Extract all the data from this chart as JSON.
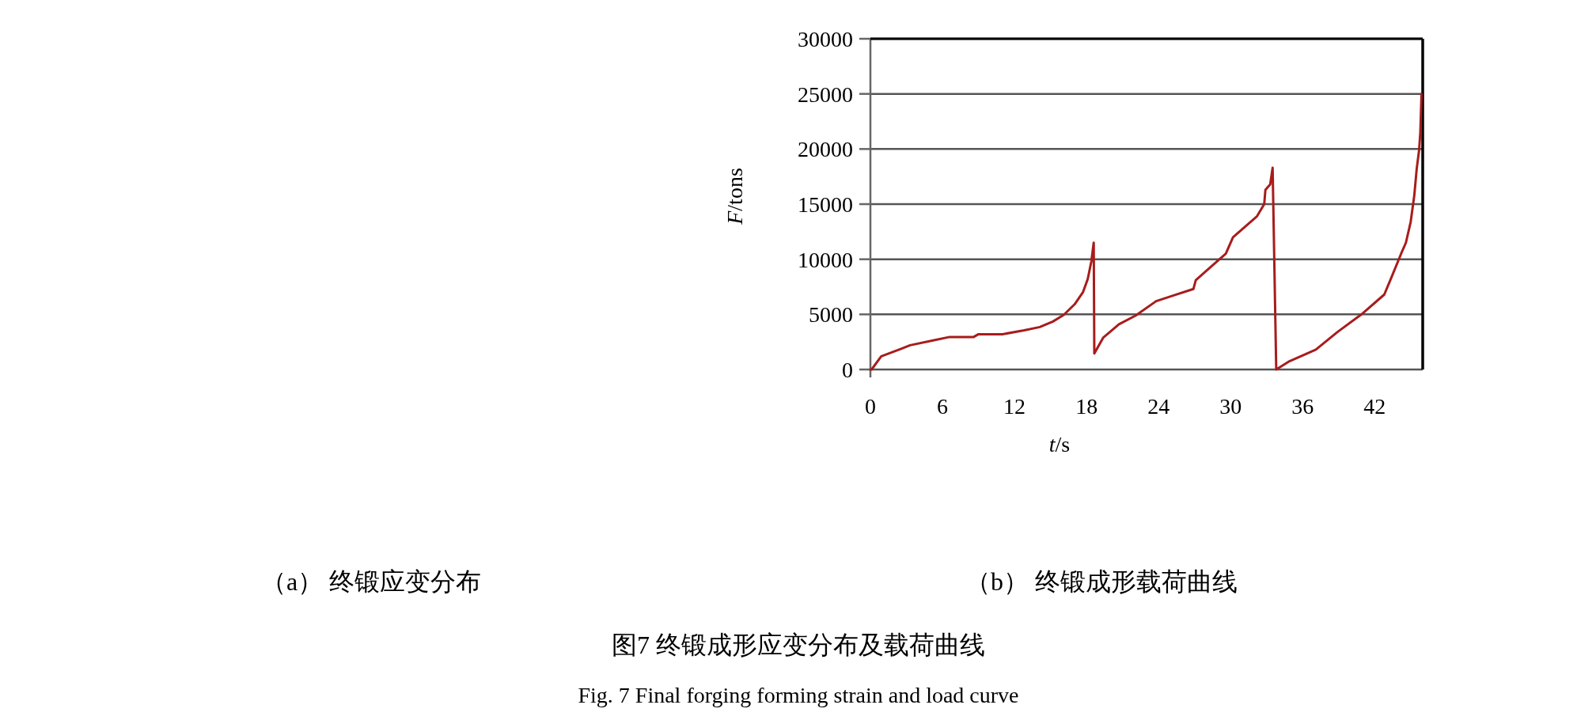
{
  "chart_data": {
    "type": "line",
    "xlabel": "*t*/s",
    "ylabel": "*F*/tons",
    "annotations": [
      "（a） 终锻应变分布",
      "（b） 终锻成形载荷曲线",
      "图7 终锻成形应变分布及载荷曲线",
      "Fig. 7 Final forging forming strain and load curve"
    ],
    "xlim": [
      0,
      46
    ],
    "ylim": [
      0,
      30000
    ],
    "xticks": [
      0,
      6,
      12,
      18,
      24,
      30,
      36,
      42
    ],
    "yticks": [
      0,
      5000,
      10000,
      15000,
      20000,
      25000,
      30000
    ],
    "grid": "y",
    "line_style": "solid",
    "series": [
      {
        "color": "#a81c1c",
        "x": [
          0,
          0.1,
          0.9,
          2.6,
          3.3,
          5.3,
          6.6,
          8.6,
          9.0,
          11.0,
          12.8,
          14.1,
          15.2,
          16.1,
          17.0,
          17.7,
          18.1,
          18.4,
          18.6,
          18.65,
          19.4,
          20.7,
          22.1,
          23.8,
          25.2,
          26.9,
          27.1,
          29.6,
          30.2,
          32.2,
          32.8,
          32.9,
          33.3,
          33.5,
          33.8,
          34.9,
          37.1,
          38.9,
          40.9,
          42.8,
          43.3,
          44.2,
          44.6,
          45.0,
          45.3,
          45.5,
          45.7,
          45.8,
          45.9
        ],
        "values": [
          0,
          0,
          1200,
          1900,
          2200,
          2650,
          2950,
          2950,
          3200,
          3200,
          3550,
          3850,
          4350,
          4950,
          5900,
          7000,
          8200,
          9800,
          11500,
          1450,
          2900,
          4100,
          4900,
          6200,
          6700,
          7300,
          8100,
          10500,
          12000,
          13900,
          15000,
          16300,
          16800,
          18300,
          0,
          750,
          1800,
          3400,
          5000,
          6800,
          8100,
          10500,
          11500,
          13400,
          15800,
          18200,
          19900,
          21500,
          25000
        ]
      }
    ]
  }
}
